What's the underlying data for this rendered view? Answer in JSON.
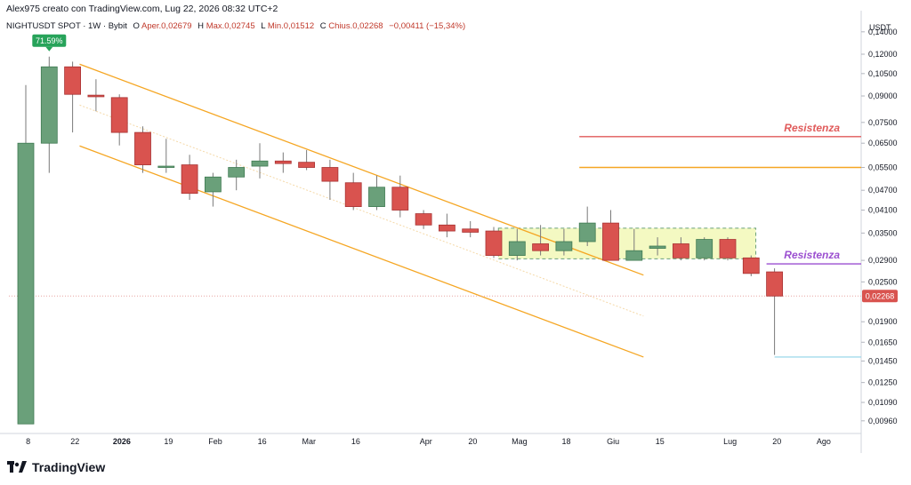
{
  "header": {
    "credit": "Alex975 creato con TradingView.com, Lug 22, 2026 08:32 UTC+2",
    "symbol": "NIGHTUSDT SPOT · 1W · Bybit",
    "o_label": "O",
    "open": "Aper.0,02679",
    "h_label": "H",
    "high": "Max.0,02745",
    "l_label": "L",
    "low": "Min.0,01512",
    "c_label": "C",
    "close": "Chius.0,02268",
    "change": "−0,00411 (−15,34%)"
  },
  "footer": {
    "brand": "TradingView"
  },
  "colors": {
    "up": "#6aa07a",
    "down": "#d9534f",
    "channel": "#f5a623",
    "resistance_red": "#e05a5a",
    "resistance_purple": "#9b4fd0",
    "zone_fill": "#f4f9c2",
    "support_line": "#8fd3e8"
  },
  "chart_data": {
    "type": "candlestick",
    "currency": "USDT",
    "y_scale": "log",
    "ylim": [
      0.0088,
      0.16
    ],
    "y_ticks": [
      "0,14000",
      "0,12000",
      "0,10500",
      "0,09000",
      "0,07500",
      "0,06500",
      "0,05500",
      "0,04700",
      "0,04100",
      "0,03500",
      "0,02900",
      "0,02500",
      "0,01900",
      "0,01650",
      "0,01450",
      "0,01250",
      "0,01090",
      "0,00960"
    ],
    "y_tick_values": [
      0.14,
      0.12,
      0.105,
      0.09,
      0.075,
      0.065,
      0.055,
      0.047,
      0.041,
      0.035,
      0.029,
      0.025,
      0.019,
      0.0165,
      0.0145,
      0.0125,
      0.0109,
      0.0096
    ],
    "x_ticks": [
      {
        "label": "8",
        "i": 0.1,
        "bold": false
      },
      {
        "label": "22",
        "i": 2.1,
        "bold": false
      },
      {
        "label": "2026",
        "i": 4.1,
        "bold": true
      },
      {
        "label": "19",
        "i": 6.1,
        "bold": false
      },
      {
        "label": "Feb",
        "i": 8.1,
        "bold": false
      },
      {
        "label": "16",
        "i": 10.1,
        "bold": false
      },
      {
        "label": "Mar",
        "i": 12.1,
        "bold": false
      },
      {
        "label": "16",
        "i": 14.1,
        "bold": false
      },
      {
        "label": "Apr",
        "i": 17.1,
        "bold": false
      },
      {
        "label": "20",
        "i": 19.1,
        "bold": false
      },
      {
        "label": "Mag",
        "i": 21.1,
        "bold": false
      },
      {
        "label": "18",
        "i": 23.1,
        "bold": false
      },
      {
        "label": "Giu",
        "i": 25.1,
        "bold": false
      },
      {
        "label": "15",
        "i": 27.1,
        "bold": false
      },
      {
        "label": "Lug",
        "i": 30.1,
        "bold": false
      },
      {
        "label": "20",
        "i": 32.1,
        "bold": false
      },
      {
        "label": "Ago",
        "i": 34.1,
        "bold": false
      }
    ],
    "candles": [
      {
        "o": 0.0094,
        "h": 0.097,
        "l": 0.0094,
        "c": 0.065
      },
      {
        "o": 0.065,
        "h": 0.118,
        "l": 0.053,
        "c": 0.11
      },
      {
        "o": 0.11,
        "h": 0.114,
        "l": 0.07,
        "c": 0.091
      },
      {
        "o": 0.0905,
        "h": 0.101,
        "l": 0.081,
        "c": 0.0895
      },
      {
        "o": 0.089,
        "h": 0.091,
        "l": 0.064,
        "c": 0.07
      },
      {
        "o": 0.07,
        "h": 0.073,
        "l": 0.053,
        "c": 0.056
      },
      {
        "o": 0.0555,
        "h": 0.067,
        "l": 0.053,
        "c": 0.0555
      },
      {
        "o": 0.056,
        "h": 0.06,
        "l": 0.044,
        "c": 0.046
      },
      {
        "o": 0.0465,
        "h": 0.053,
        "l": 0.042,
        "c": 0.0515
      },
      {
        "o": 0.0515,
        "h": 0.058,
        "l": 0.047,
        "c": 0.055
      },
      {
        "o": 0.0555,
        "h": 0.065,
        "l": 0.051,
        "c": 0.0575
      },
      {
        "o": 0.0575,
        "h": 0.061,
        "l": 0.053,
        "c": 0.0565
      },
      {
        "o": 0.057,
        "h": 0.062,
        "l": 0.054,
        "c": 0.055
      },
      {
        "o": 0.055,
        "h": 0.058,
        "l": 0.044,
        "c": 0.05
      },
      {
        "o": 0.0495,
        "h": 0.053,
        "l": 0.041,
        "c": 0.042
      },
      {
        "o": 0.042,
        "h": 0.052,
        "l": 0.041,
        "c": 0.048
      },
      {
        "o": 0.048,
        "h": 0.052,
        "l": 0.039,
        "c": 0.041
      },
      {
        "o": 0.04,
        "h": 0.041,
        "l": 0.036,
        "c": 0.037
      },
      {
        "o": 0.037,
        "h": 0.04,
        "l": 0.034,
        "c": 0.0355
      },
      {
        "o": 0.036,
        "h": 0.038,
        "l": 0.034,
        "c": 0.0352
      },
      {
        "o": 0.0355,
        "h": 0.0365,
        "l": 0.0295,
        "c": 0.03
      },
      {
        "o": 0.03,
        "h": 0.036,
        "l": 0.029,
        "c": 0.033
      },
      {
        "o": 0.0325,
        "h": 0.037,
        "l": 0.03,
        "c": 0.031
      },
      {
        "o": 0.031,
        "h": 0.036,
        "l": 0.03,
        "c": 0.033
      },
      {
        "o": 0.033,
        "h": 0.042,
        "l": 0.032,
        "c": 0.0375
      },
      {
        "o": 0.0375,
        "h": 0.041,
        "l": 0.029,
        "c": 0.029
      },
      {
        "o": 0.029,
        "h": 0.036,
        "l": 0.029,
        "c": 0.031
      },
      {
        "o": 0.0315,
        "h": 0.034,
        "l": 0.03,
        "c": 0.032
      },
      {
        "o": 0.0325,
        "h": 0.034,
        "l": 0.029,
        "c": 0.0295
      },
      {
        "o": 0.0295,
        "h": 0.034,
        "l": 0.029,
        "c": 0.0335
      },
      {
        "o": 0.0335,
        "h": 0.034,
        "l": 0.029,
        "c": 0.0295
      },
      {
        "o": 0.0295,
        "h": 0.03,
        "l": 0.026,
        "c": 0.0265
      },
      {
        "o": 0.02679,
        "h": 0.02745,
        "l": 0.01512,
        "c": 0.02268
      }
    ],
    "max_label": {
      "text": "71.59%",
      "candle": 1
    },
    "last_price": {
      "text": "0,02268",
      "value": 0.02268
    },
    "resistances": [
      {
        "label": "Resistenza",
        "value": 0.068,
        "from_i": 24,
        "color": "resistance_red",
        "labeled": true
      },
      {
        "label": "",
        "value": 0.055,
        "from_i": 24,
        "color": "channel",
        "labeled": false
      },
      {
        "label": "Resistenza",
        "value": 0.0283,
        "from_i": 32,
        "color": "resistance_purple",
        "labeled": true
      }
    ],
    "support": {
      "value": 0.0149,
      "from_i": 32
    },
    "channel": {
      "upper": [
        {
          "i": 2.3,
          "v": 0.112
        },
        {
          "i": 26.4,
          "v": 0.0262
        }
      ],
      "lower": [
        {
          "i": 2.3,
          "v": 0.0638
        },
        {
          "i": 26.4,
          "v": 0.0149
        }
      ]
    },
    "zone": {
      "i0": 20.2,
      "i1": 31.2,
      "v_top": 0.0362,
      "v_bottom": 0.0293
    }
  }
}
